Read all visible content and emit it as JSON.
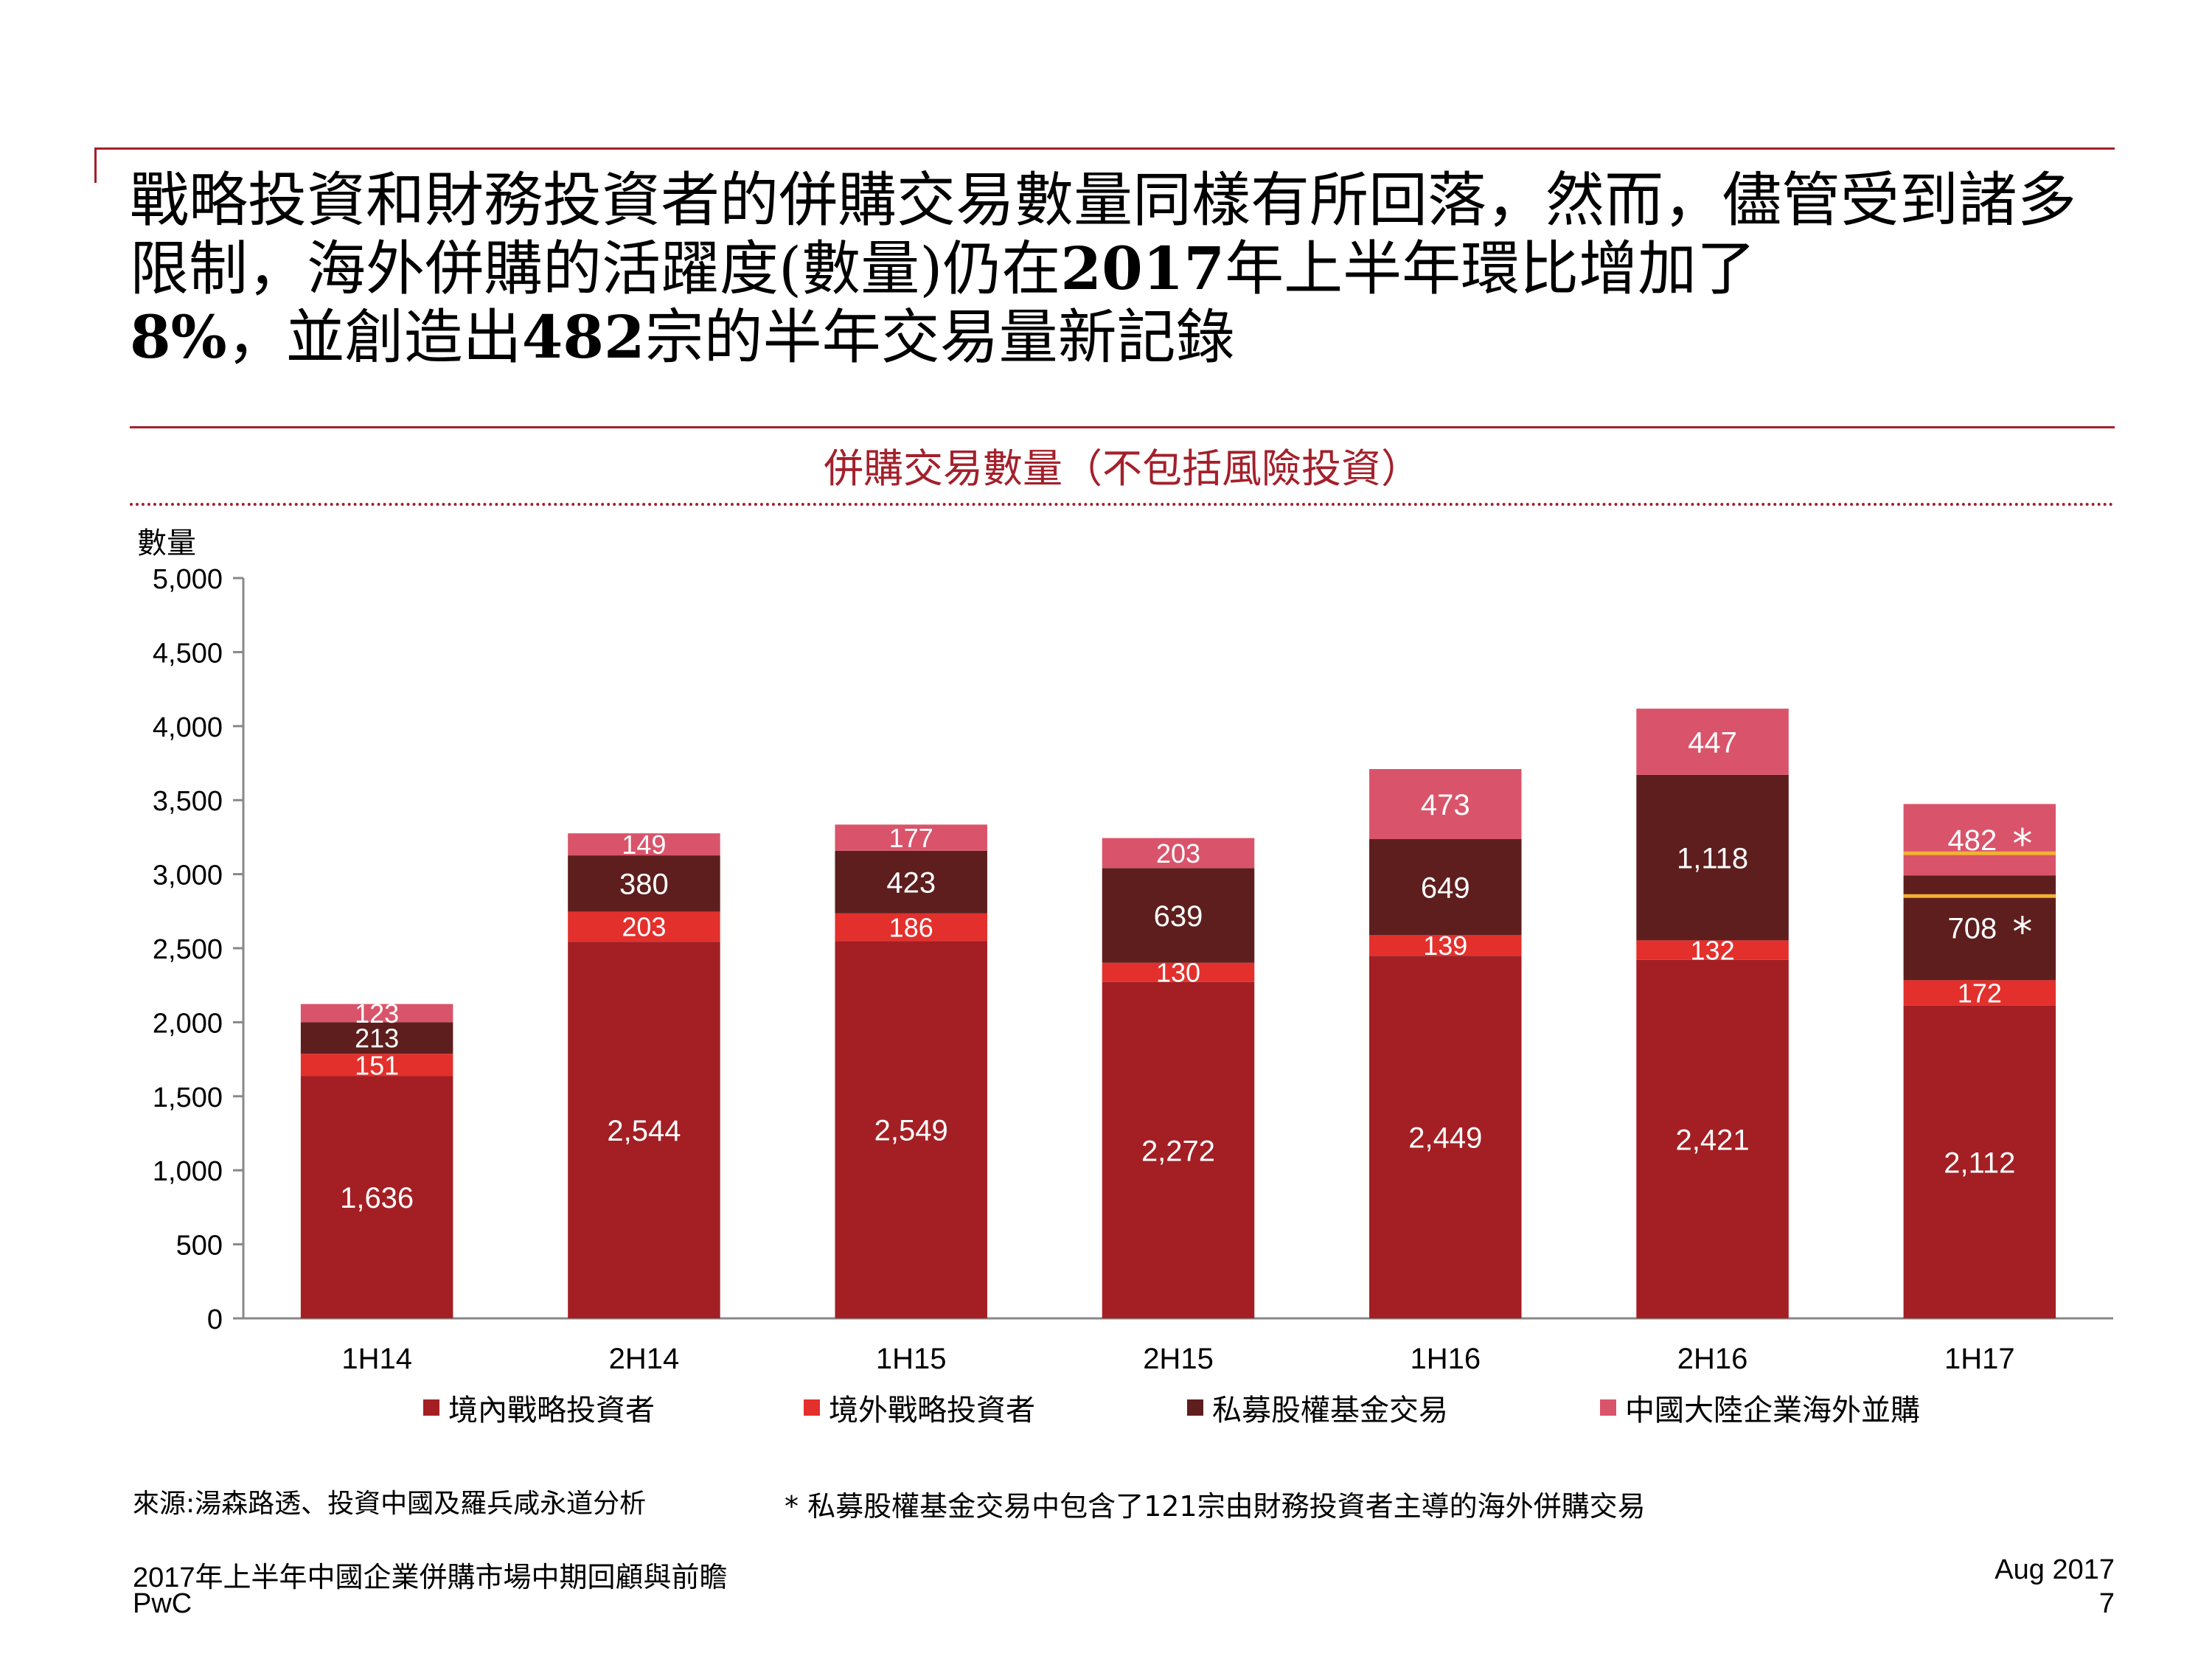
{
  "headline": {
    "p1": "戰略投資和財務投資者的併購交易數量同樣有所回落，然而，儘管受到諸多限制，海外併購的活躍度(數量)仍在",
    "b1": "2017",
    "p2": "年上半年環比增加了",
    "b2": "8%",
    "p3": "，並創造出",
    "b3": "482",
    "p4": "宗的半年交易量新記錄"
  },
  "chart_data": {
    "type": "bar",
    "stacked": true,
    "title": "併購交易數量（不包括風險投資）",
    "ylabel": "數量",
    "xlabel": "",
    "ylim": [
      0,
      5000
    ],
    "yticks": [
      0,
      500,
      1000,
      1500,
      2000,
      2500,
      3000,
      3500,
      4000,
      4500,
      5000
    ],
    "ytick_labels": [
      "0",
      "500",
      "1,000",
      "1,500",
      "2,000",
      "2,500",
      "3,000",
      "3,500",
      "4,000",
      "4,500",
      "5,000"
    ],
    "categories": [
      "1H14",
      "2H14",
      "1H15",
      "2H15",
      "1H16",
      "2H16",
      "1H17"
    ],
    "series": [
      {
        "name": "境內戰略投資者",
        "color": "#a31f24",
        "values": [
          1636,
          2544,
          2549,
          2272,
          2449,
          2421,
          2112
        ],
        "labels": [
          "1,636",
          "2,544",
          "2,549",
          "2,272",
          "2,449",
          "2,421",
          "2,112"
        ]
      },
      {
        "name": "境外戰略投資者",
        "color": "#e3302c",
        "values": [
          151,
          203,
          186,
          130,
          139,
          132,
          172
        ],
        "labels": [
          "151",
          "203",
          "186",
          "130",
          "139",
          "132",
          "172"
        ]
      },
      {
        "name": "私募股權基金交易",
        "color": "#5e1e1e",
        "values": [
          213,
          380,
          423,
          639,
          649,
          1118,
          708
        ],
        "labels": [
          "213",
          "380",
          "423",
          "639",
          "649",
          "1,118",
          "708"
        ]
      },
      {
        "name": "中國大陸企業海外並購",
        "color": "#d9546a",
        "values": [
          123,
          149,
          177,
          203,
          473,
          447,
          482
        ],
        "labels": [
          "123",
          "149",
          "177",
          "203",
          "473",
          "447",
          "482"
        ]
      }
    ],
    "annotations": [
      {
        "category": "1H17",
        "series": "私募股權基金交易",
        "text": "*"
      },
      {
        "category": "1H17",
        "series": "中國大陸企業海外並購",
        "text": "*"
      }
    ],
    "highlight_color": "#f2b233",
    "axis_color": "#888888",
    "legend": "bottom"
  },
  "source": "來源:湯森路透、投資中國及羅兵咸永道分析",
  "footnote": "* 私募股權基金交易中包含了121宗由財務投資者主導的海外併購交易",
  "footer": {
    "left_line1": "2017年上半年中國企業併購市場中期回顧與前瞻",
    "left_line2": "PwC",
    "right_line1": "Aug 2017",
    "right_line2": "7"
  }
}
